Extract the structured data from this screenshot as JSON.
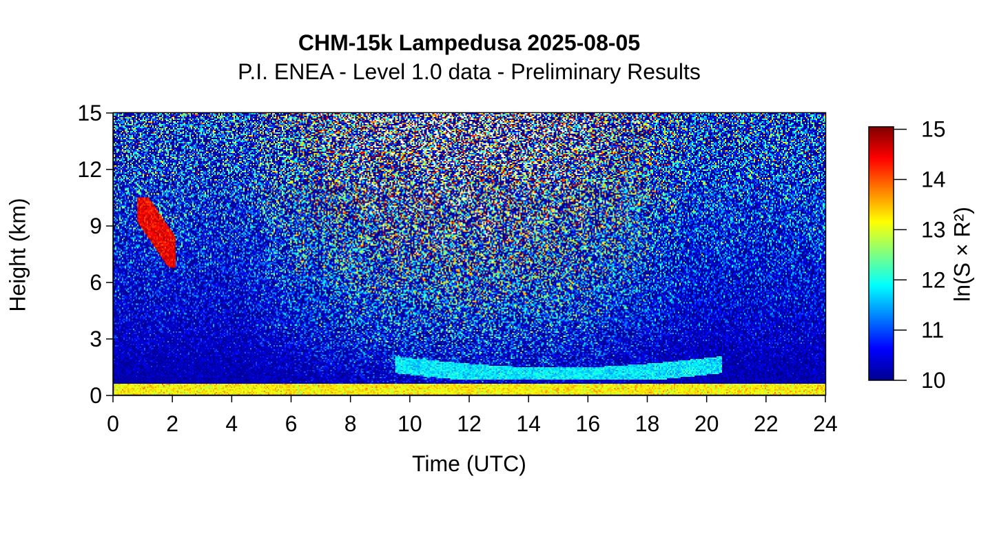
{
  "chart_data": {
    "type": "heatmap",
    "title": "CHM-15k Lampedusa 2025-08-05",
    "subtitle": "P.I. ENEA - Level 1.0 data - Preliminary Results",
    "xlabel": "Time (UTC)",
    "ylabel": "Height (km)",
    "xlim": [
      0,
      24
    ],
    "ylim": [
      0,
      15
    ],
    "x_ticks": [
      "0",
      "2",
      "4",
      "6",
      "8",
      "10",
      "12",
      "14",
      "16",
      "18",
      "20",
      "22",
      "24"
    ],
    "y_ticks": [
      "0",
      "3",
      "6",
      "9",
      "12",
      "15"
    ],
    "colorbar": {
      "label": "ln(S × R²)",
      "range": [
        10,
        15.05
      ],
      "ticks": [
        "10",
        "11",
        "12",
        "13",
        "14",
        "15"
      ],
      "colormap": [
        "#00008f",
        "#0000ff",
        "#0080ff",
        "#00ffff",
        "#80ff80",
        "#ffff00",
        "#ff8000",
        "#ff0000",
        "#800000"
      ]
    },
    "features": [
      {
        "name": "boundary-layer-aerosol",
        "time_range": [
          0,
          24
        ],
        "height_range": [
          0,
          0.6
        ],
        "value": 13.2
      },
      {
        "name": "cirrus-cloud",
        "time_range": [
          0.8,
          2.1
        ],
        "height_range": [
          6.8,
          10.5
        ],
        "value": 14.5
      },
      {
        "name": "elevated-aerosol-layer",
        "time_range": [
          9.5,
          20.5
        ],
        "height_range": [
          0.8,
          2.2
        ],
        "value": 11.8
      }
    ]
  }
}
